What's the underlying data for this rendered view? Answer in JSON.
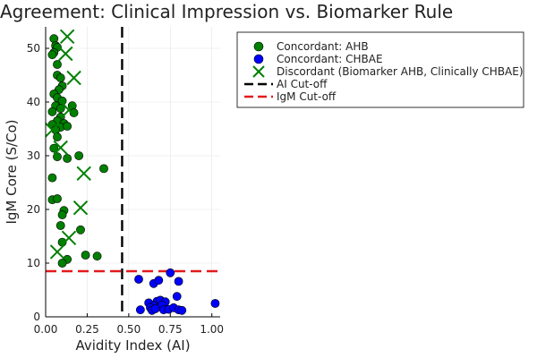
{
  "chart_data": {
    "type": "scatter",
    "title": "Agreement: Clinical Impression vs. Biomarker Rule",
    "xlabel": "Avidity Index (AI)",
    "ylabel": "IgM Core (S/Co)",
    "xlim": [
      0.0,
      1.05
    ],
    "ylim": [
      0,
      54
    ],
    "xticks": [
      0.0,
      0.25,
      0.5,
      0.75,
      1.0
    ],
    "xtick_labels": [
      "0.00",
      "0.25",
      "0.50",
      "0.75",
      "1.00"
    ],
    "yticks": [
      0,
      10,
      20,
      30,
      40,
      50
    ],
    "ytick_labels": [
      "0",
      "10",
      "20",
      "30",
      "40",
      "50"
    ],
    "grid": true,
    "legend_position": "top-right",
    "series": [
      {
        "name": "Concordant: AHB",
        "marker": "circle",
        "color": "#008000",
        "points": [
          [
            0.05,
            51.8
          ],
          [
            0.06,
            50.5
          ],
          [
            0.07,
            50.2
          ],
          [
            0.05,
            49.2
          ],
          [
            0.04,
            48.8
          ],
          [
            0.07,
            47.0
          ],
          [
            0.07,
            45.0
          ],
          [
            0.09,
            44.5
          ],
          [
            0.1,
            43.0
          ],
          [
            0.08,
            42.3
          ],
          [
            0.05,
            41.5
          ],
          [
            0.07,
            40.8
          ],
          [
            0.1,
            40.2
          ],
          [
            0.06,
            39.3
          ],
          [
            0.09,
            38.8
          ],
          [
            0.16,
            39.3
          ],
          [
            0.04,
            38.2
          ],
          [
            0.17,
            38.0
          ],
          [
            0.09,
            37.2
          ],
          [
            0.07,
            36.5
          ],
          [
            0.04,
            35.8
          ],
          [
            0.11,
            36.0
          ],
          [
            0.09,
            35.3
          ],
          [
            0.06,
            34.8
          ],
          [
            0.13,
            35.5
          ],
          [
            0.07,
            33.5
          ],
          [
            0.05,
            31.4
          ],
          [
            0.2,
            30.0
          ],
          [
            0.07,
            29.8
          ],
          [
            0.13,
            29.5
          ],
          [
            0.35,
            27.6
          ],
          [
            0.04,
            25.9
          ],
          [
            0.04,
            21.8
          ],
          [
            0.07,
            22.0
          ],
          [
            0.11,
            19.8
          ],
          [
            0.1,
            19.0
          ],
          [
            0.09,
            17.0
          ],
          [
            0.21,
            16.2
          ],
          [
            0.1,
            13.9
          ],
          [
            0.24,
            11.5
          ],
          [
            0.31,
            11.3
          ],
          [
            0.13,
            10.7
          ],
          [
            0.1,
            10.0
          ]
        ]
      },
      {
        "name": "Concordant: CHBAE",
        "marker": "circle",
        "color": "#0000ff",
        "points": [
          [
            0.56,
            7.0
          ],
          [
            0.65,
            6.2
          ],
          [
            0.68,
            6.8
          ],
          [
            0.75,
            8.2
          ],
          [
            0.8,
            6.6
          ],
          [
            0.79,
            3.8
          ],
          [
            0.62,
            2.6
          ],
          [
            0.67,
            2.9
          ],
          [
            0.69,
            3.1
          ],
          [
            0.72,
            2.8
          ],
          [
            0.7,
            2.2
          ],
          [
            0.65,
            2.1
          ],
          [
            0.63,
            1.7
          ],
          [
            0.57,
            1.3
          ],
          [
            0.64,
            1.2
          ],
          [
            0.66,
            1.5
          ],
          [
            0.71,
            1.3
          ],
          [
            0.74,
            1.4
          ],
          [
            0.77,
            1.7
          ],
          [
            0.8,
            1.3
          ],
          [
            0.82,
            1.2
          ],
          [
            1.02,
            2.5
          ]
        ]
      },
      {
        "name": "Discordant (Biomarker AHB, Clinically CHBAE)",
        "marker": "x",
        "color": "#008000",
        "points": [
          [
            0.13,
            52.2
          ],
          [
            0.12,
            49.0
          ],
          [
            0.17,
            44.5
          ],
          [
            0.14,
            38.5
          ],
          [
            0.04,
            34.8
          ],
          [
            0.09,
            31.5
          ],
          [
            0.23,
            26.7
          ],
          [
            0.21,
            20.3
          ],
          [
            0.14,
            14.7
          ],
          [
            0.07,
            12.1
          ]
        ]
      }
    ],
    "reference_lines": [
      {
        "name": "AI Cut-off",
        "orientation": "vertical",
        "value": 0.46,
        "color": "#000000",
        "style": "dashed"
      },
      {
        "name": "IgM Cut-off",
        "orientation": "horizontal",
        "value": 8.5,
        "color": "#e41a1c",
        "style": "dashed"
      }
    ]
  }
}
